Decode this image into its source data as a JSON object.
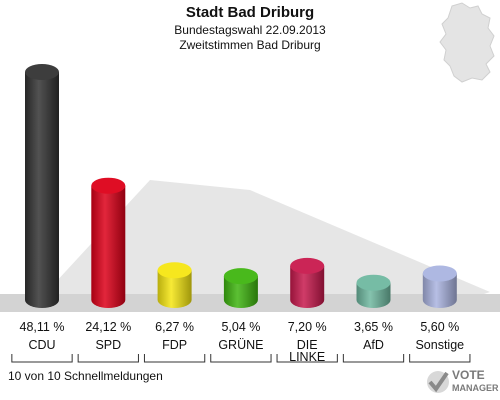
{
  "header": {
    "title": "Stadt Bad Driburg",
    "subtitle1": "Bundestagswahl 22.09.2013",
    "subtitle2": "Zweitstimmen Bad Driburg"
  },
  "footer": {
    "text": "10 von 10 Schnellmeldungen"
  },
  "logo": {
    "line1": "VOTE",
    "line2": "MANAGER"
  },
  "chart_data": {
    "type": "bar",
    "categories": [
      "CDU",
      "SPD",
      "FDP",
      "GRÜNE",
      "DIE LINKE",
      "AfD",
      "Sonstige"
    ],
    "values": [
      48.11,
      24.12,
      6.27,
      5.04,
      7.2,
      3.65,
      5.6
    ],
    "value_labels": [
      "48,11 %",
      "24,12 %",
      "6,27 %",
      "5,04 %",
      "7,20 %",
      "3,65 %",
      "5,60 %"
    ],
    "colors": [
      "#333333",
      "#dd0018",
      "#f5e612",
      "#3fb510",
      "#c8194d",
      "#6fb8a0",
      "#aab4e0"
    ],
    "ylim": [
      0,
      50
    ],
    "grid": false,
    "legend": "none"
  }
}
